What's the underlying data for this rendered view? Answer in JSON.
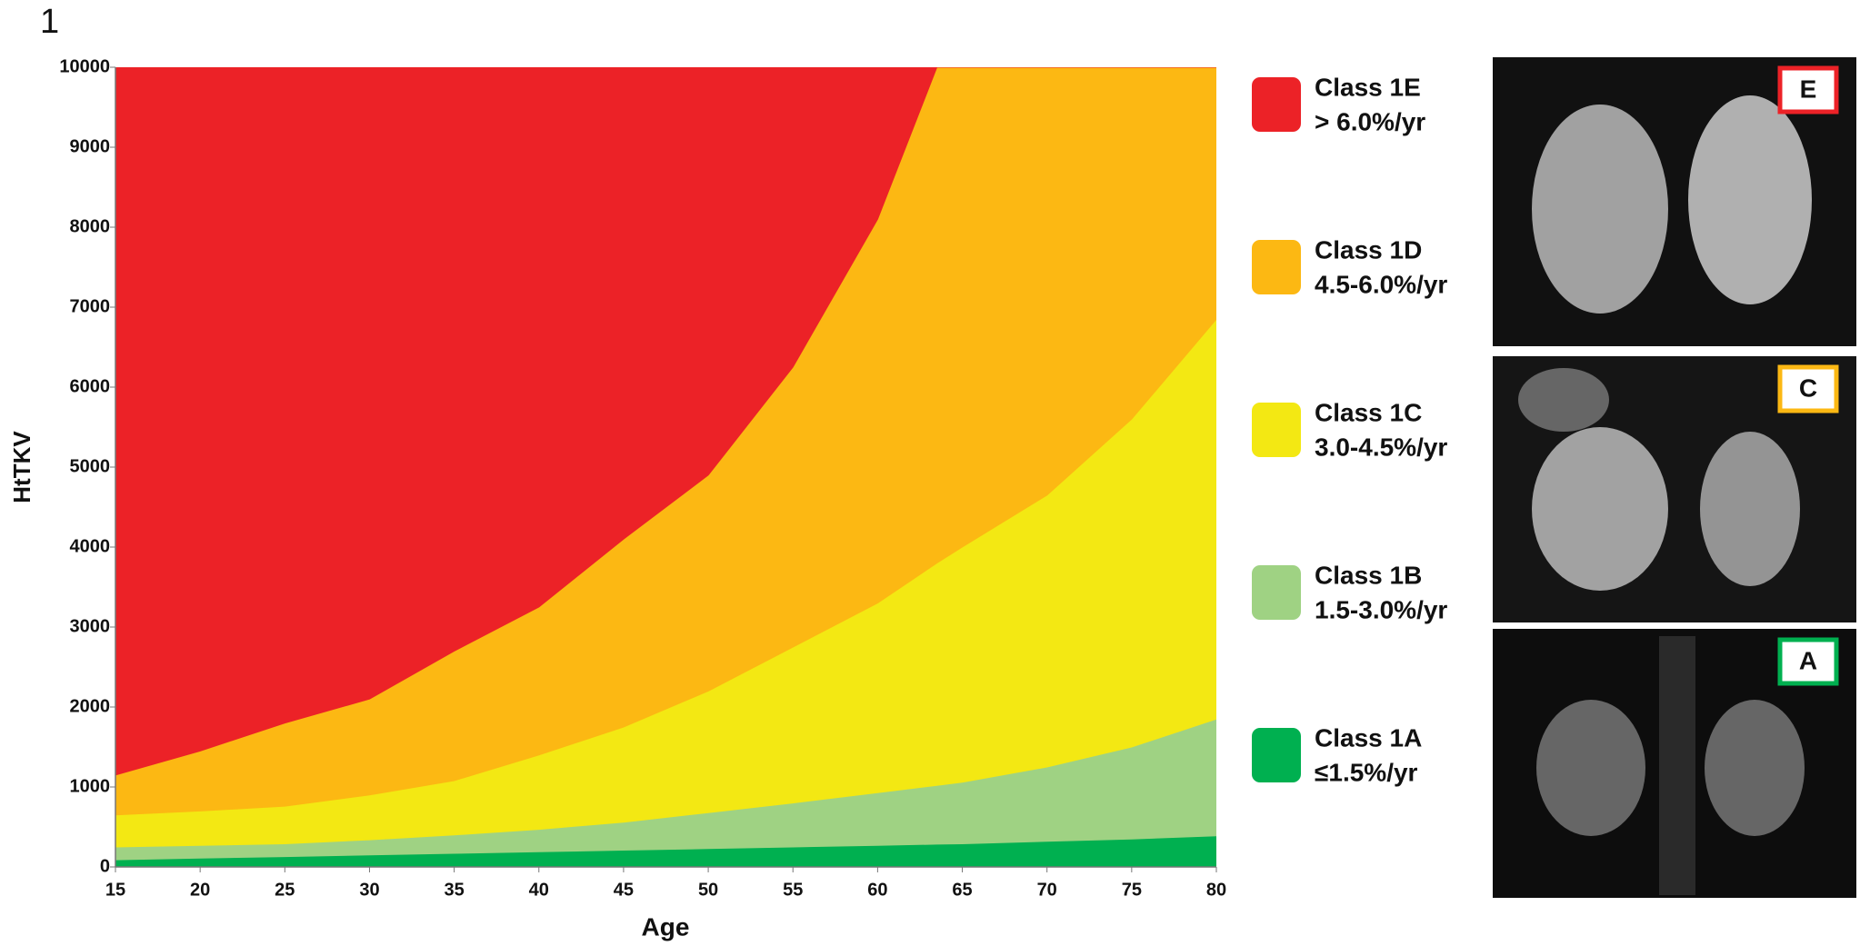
{
  "figure_label": "1",
  "chart_data": {
    "type": "area",
    "x_label": "Age",
    "y_label": "HtTKV",
    "x": [
      15,
      20,
      25,
      30,
      35,
      40,
      45,
      50,
      55,
      60,
      63.5,
      65,
      70,
      75,
      80
    ],
    "xlim": [
      15,
      80
    ],
    "xticks": [
      15,
      20,
      25,
      30,
      35,
      40,
      45,
      50,
      55,
      60,
      65,
      70,
      75,
      80
    ],
    "ylim": [
      0,
      10000
    ],
    "yticks": [
      0,
      1000,
      2000,
      3000,
      4000,
      5000,
      6000,
      7000,
      8000,
      9000,
      10000
    ],
    "series": [
      {
        "name": "Class 1A",
        "rate": "≤1.5%/yr",
        "color": "#00b050",
        "values": [
          90,
          110,
          130,
          150,
          170,
          190,
          210,
          230,
          250,
          270,
          285,
          290,
          320,
          350,
          390
        ]
      },
      {
        "name": "Class 1B",
        "rate": "1.5-3.0%/yr",
        "color": "#9fd283",
        "values": [
          250,
          270,
          290,
          340,
          400,
          470,
          560,
          680,
          800,
          930,
          1020,
          1060,
          1250,
          1500,
          1850
        ]
      },
      {
        "name": "Class 1C",
        "rate": "3.0-4.5%/yr",
        "color": "#f3e813",
        "values": [
          650,
          700,
          760,
          900,
          1080,
          1400,
          1750,
          2200,
          2750,
          3300,
          3800,
          4000,
          4650,
          5600,
          6850
        ]
      },
      {
        "name": "Class 1D",
        "rate": "4.5-6.0%/yr",
        "color": "#fcb813",
        "values": [
          1150,
          1450,
          1800,
          2100,
          2700,
          3250,
          4100,
          4900,
          6250,
          8100,
          10000,
          null,
          null,
          null,
          null
        ]
      },
      {
        "name": "Class 1E",
        "rate": "> 6.0%/yr",
        "color": "#ec2227"
      }
    ]
  },
  "panels": [
    {
      "label": "E",
      "color": "#ec2227"
    },
    {
      "label": "C",
      "color": "#fcb813"
    },
    {
      "label": "A",
      "color": "#00b050"
    }
  ]
}
